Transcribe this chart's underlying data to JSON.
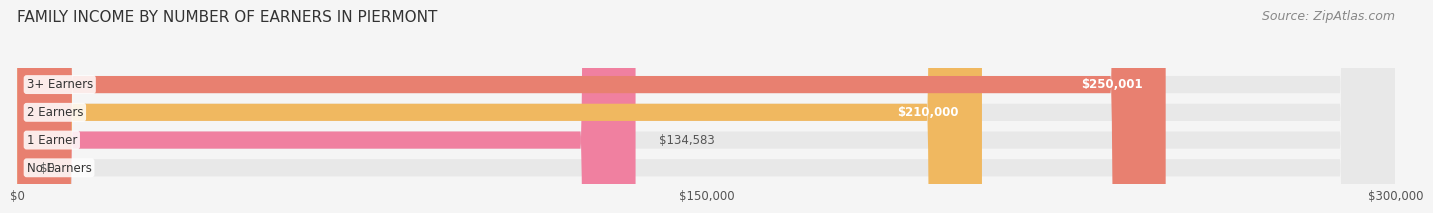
{
  "title": "FAMILY INCOME BY NUMBER OF EARNERS IN PIERMONT",
  "source": "Source: ZipAtlas.com",
  "categories": [
    "No Earners",
    "1 Earner",
    "2 Earners",
    "3+ Earners"
  ],
  "values": [
    0,
    134583,
    210000,
    250001
  ],
  "bar_colors": [
    "#a8a8d8",
    "#f080a0",
    "#f0b860",
    "#e88070"
  ],
  "bar_bg_color": "#e8e8e8",
  "label_colors": [
    "#555555",
    "#555555",
    "#ffffff",
    "#ffffff"
  ],
  "value_labels": [
    "$0",
    "$134,583",
    "$210,000",
    "$250,001"
  ],
  "xlim": [
    0,
    300000
  ],
  "xticks": [
    0,
    150000,
    300000
  ],
  "xtick_labels": [
    "$0",
    "$150,000",
    "$300,000"
  ],
  "background_color": "#f5f5f5",
  "title_fontsize": 11,
  "source_fontsize": 9
}
